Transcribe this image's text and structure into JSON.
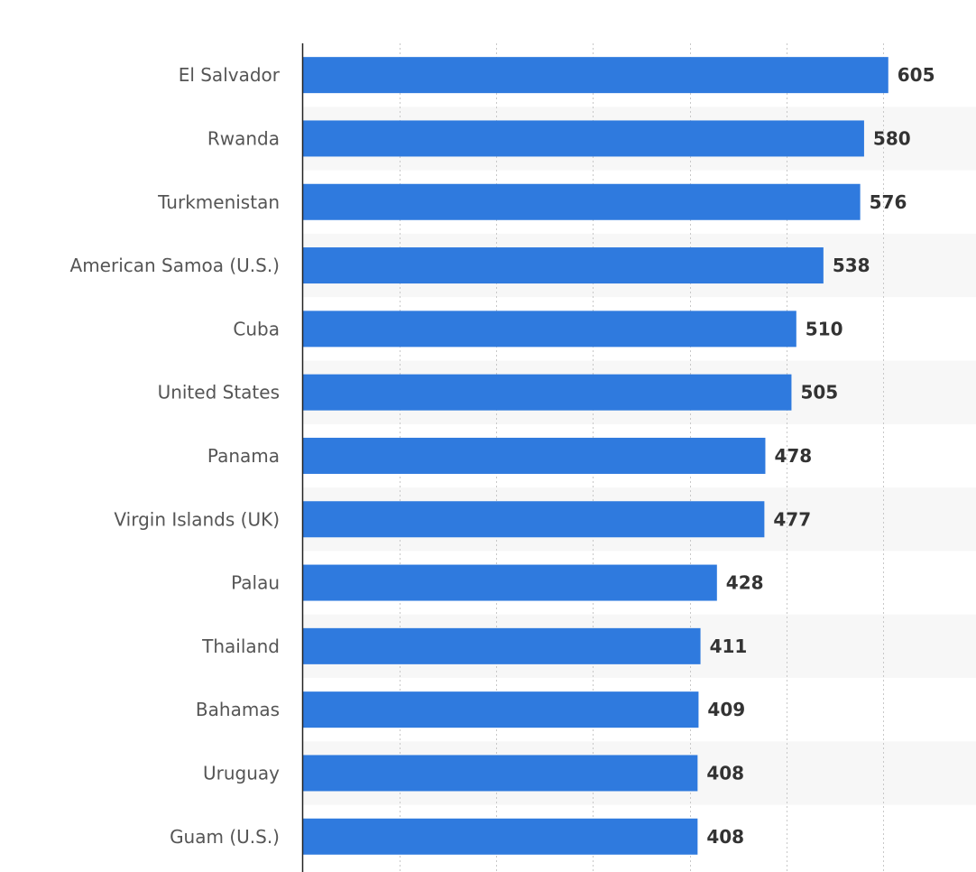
{
  "chart_data": {
    "type": "bar",
    "orientation": "horizontal",
    "categories": [
      "El Salvador",
      "Rwanda",
      "Turkmenistan",
      "American Samoa (U.S.)",
      "Cuba",
      "United States",
      "Panama",
      "Virgin Islands (UK)",
      "Palau",
      "Thailand",
      "Bahamas",
      "Uruguay",
      "Guam (U.S.)"
    ],
    "values": [
      605,
      580,
      576,
      538,
      510,
      505,
      478,
      477,
      428,
      411,
      409,
      408,
      408
    ],
    "xlim": [
      0,
      600
    ],
    "grid": true,
    "bar_color": "#2f7ade",
    "stripe_color": "#f7f7f7",
    "gridline_color": "#c8c8c8",
    "axis_color": "#222222"
  }
}
